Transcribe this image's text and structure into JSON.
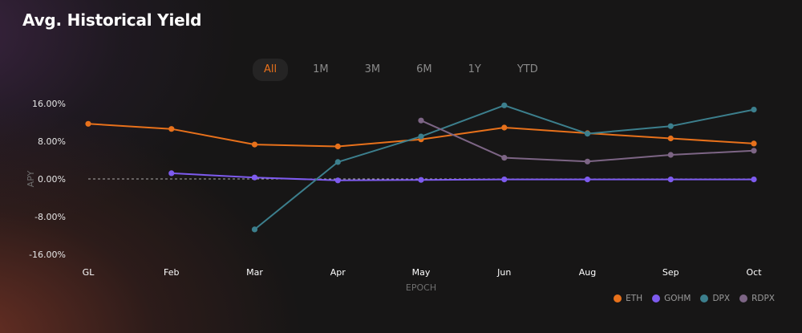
{
  "page": {
    "title": "Avg. Historical Yield"
  },
  "tabs": [
    {
      "label": "All",
      "active": true
    },
    {
      "label": "1M",
      "active": false
    },
    {
      "label": "3M",
      "active": false
    },
    {
      "label": "6M",
      "active": false
    },
    {
      "label": "1Y",
      "active": false
    },
    {
      "label": "YTD",
      "active": false
    }
  ],
  "chart_data": {
    "type": "line",
    "title": "Avg. Historical Yield",
    "xlabel": "EPOCH",
    "ylabel": "APY",
    "categories": [
      "GL",
      "Feb",
      "Mar",
      "Apr",
      "May",
      "Jun",
      "Aug",
      "Sep",
      "Oct"
    ],
    "yticks": [
      16,
      8,
      0,
      -8,
      -16
    ],
    "ytick_labels": [
      "16.00%",
      "8.00%",
      "0.00%",
      "-8.00%",
      "-16.00%"
    ],
    "ylim": [
      -16,
      16
    ],
    "zero_line": true,
    "grid": false,
    "legend_position": "bottom-right",
    "series": [
      {
        "name": "ETH",
        "color": "#e8711b",
        "values": [
          11.7,
          10.6,
          7.3,
          6.9,
          8.4,
          10.9,
          9.7,
          8.6,
          7.5
        ]
      },
      {
        "name": "GOHM",
        "color": "#7e5bef",
        "values": [
          null,
          1.2,
          0.3,
          -0.3,
          -0.2,
          -0.1,
          -0.1,
          -0.1,
          -0.1
        ]
      },
      {
        "name": "DPX",
        "color": "#3c7f8d",
        "values": [
          null,
          null,
          -10.7,
          3.6,
          9.0,
          15.6,
          9.6,
          11.2,
          14.7
        ]
      },
      {
        "name": "RDPX",
        "color": "#7d6585",
        "values": [
          null,
          null,
          null,
          null,
          12.4,
          4.5,
          3.7,
          5.1,
          6.0
        ]
      }
    ]
  }
}
